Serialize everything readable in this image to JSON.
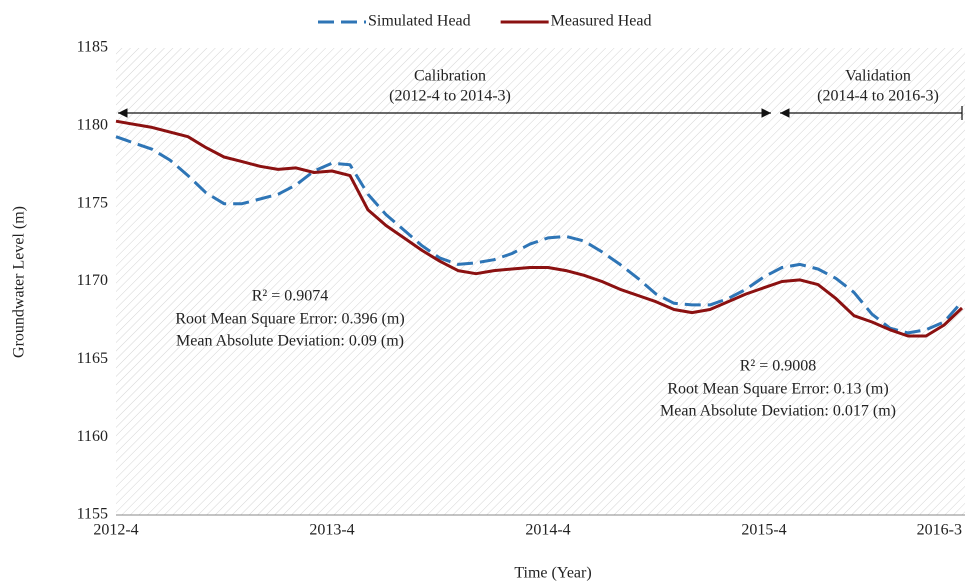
{
  "chart_data": {
    "type": "line",
    "x_label": "Time (Year)",
    "y_label": "Groundwater Level (m)",
    "categories": [
      "2012-4",
      null,
      null,
      null,
      null,
      null,
      null,
      null,
      null,
      null,
      null,
      null,
      "2013-4",
      null,
      null,
      null,
      null,
      null,
      null,
      null,
      null,
      null,
      null,
      null,
      "2014-4",
      null,
      null,
      null,
      null,
      null,
      null,
      null,
      null,
      null,
      null,
      null,
      "2015-4",
      null,
      null,
      null,
      null,
      null,
      null,
      null,
      null,
      null,
      null,
      "2016-3"
    ],
    "series": [
      {
        "name": "Simulated Head",
        "color": "#2e75b6",
        "dashed": true,
        "values": [
          1179.3,
          1178.9,
          1178.5,
          1177.8,
          1176.8,
          1175.7,
          1175.0,
          1175.0,
          1175.3,
          1175.6,
          1176.2,
          1177.1,
          1177.6,
          1177.5,
          1175.6,
          1174.3,
          1173.3,
          1172.3,
          1171.5,
          1171.1,
          1171.2,
          1171.4,
          1171.8,
          1172.4,
          1172.8,
          1172.9,
          1172.6,
          1171.9,
          1171.1,
          1170.2,
          1169.2,
          1168.6,
          1168.5,
          1168.5,
          1168.9,
          1169.5,
          1170.3,
          1170.9,
          1171.1,
          1170.8,
          1170.2,
          1169.3,
          1167.9,
          1167.0,
          1166.7,
          1166.9,
          1167.4,
          1168.7
        ]
      },
      {
        "name": "Measured Head",
        "color": "#8b1111",
        "dashed": false,
        "values": [
          1180.3,
          1180.1,
          1179.9,
          1179.6,
          1179.3,
          1178.6,
          1178.0,
          1177.7,
          1177.4,
          1177.2,
          1177.3,
          1177.0,
          1177.1,
          1176.8,
          1174.6,
          1173.6,
          1172.8,
          1172.0,
          1171.3,
          1170.7,
          1170.5,
          1170.7,
          1170.8,
          1170.9,
          1170.9,
          1170.7,
          1170.4,
          1170.0,
          1169.5,
          1169.1,
          1168.7,
          1168.2,
          1168.0,
          1168.2,
          1168.7,
          1169.2,
          1169.6,
          1170.0,
          1170.1,
          1169.8,
          1168.9,
          1167.8,
          1167.4,
          1166.9,
          1166.5,
          1166.5,
          1167.2,
          1168.3
        ]
      }
    ],
    "ylim": [
      1155,
      1185
    ],
    "yticks": [
      1155,
      1160,
      1165,
      1170,
      1175,
      1180,
      1185
    ],
    "legend": "top",
    "annotations": {
      "calibration": [
        "Calibration",
        "(2012-4 to 2014-3)"
      ],
      "validation": [
        "Validation",
        "(2014-4 to 2016-3)"
      ],
      "stats_calibration": [
        "R² = 0.9074",
        "Root Mean Square Error: 0.396 (m)",
        "Mean Absolute Deviation: 0.09 (m)"
      ],
      "stats_validation": [
        "R² = 0.9008",
        "Root Mean Square Error: 0.13 (m)",
        "Mean Absolute Deviation: 0.017 (m)"
      ]
    }
  }
}
